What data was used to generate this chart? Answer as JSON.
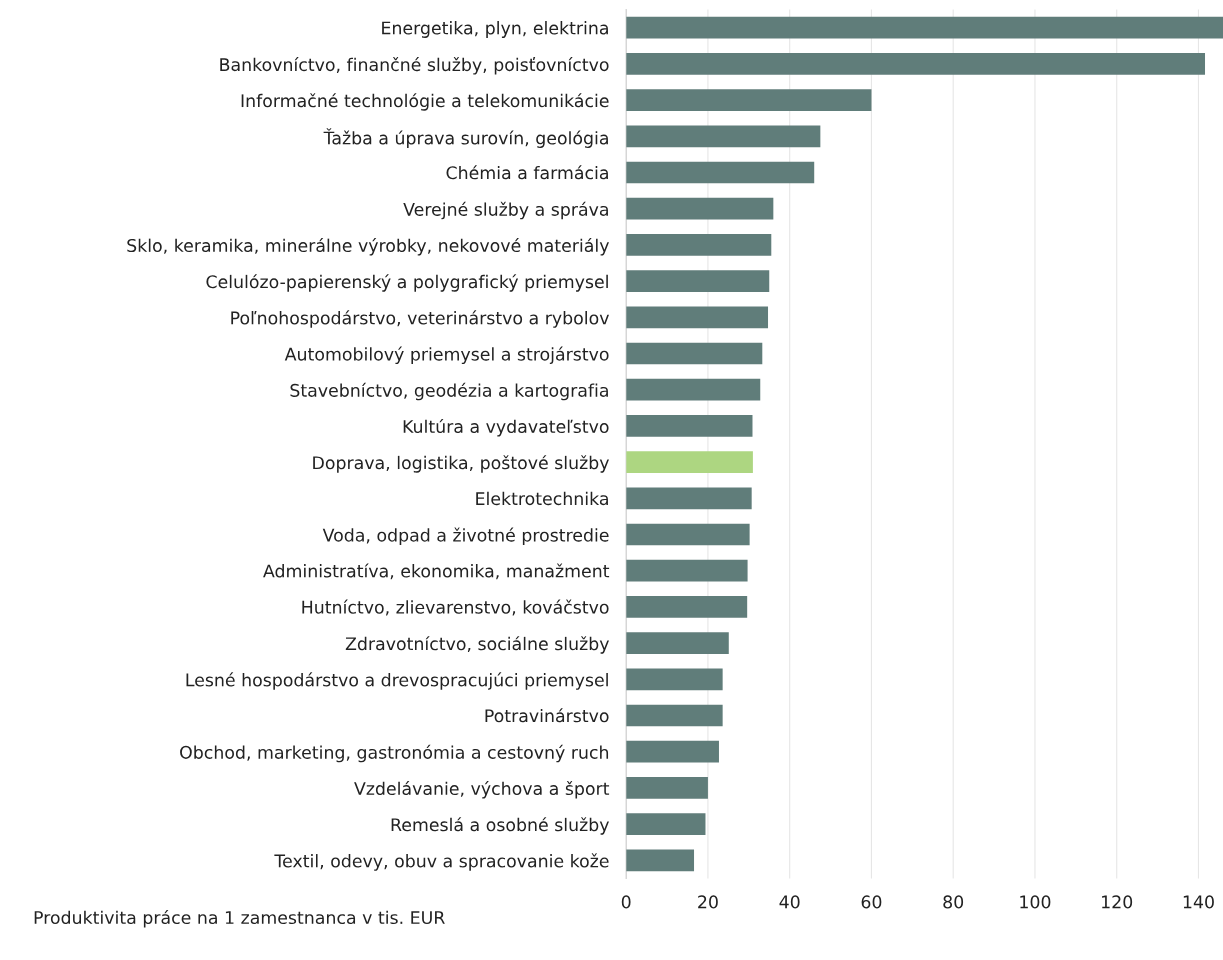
{
  "chart_data": {
    "type": "bar",
    "orientation": "horizontal",
    "xlabel": "Produktivita práce na 1 zamestnanca v tis. EUR",
    "categories": [
      "Energetika, plyn, elektrina",
      "Bankovníctvo, finančné služby, poisťovníctvo",
      "Informačné technológie a telekomunikácie",
      "Ťažba a úprava surovín, geológia",
      "Chémia a farmácia",
      "Verejné služby a správa",
      "Sklo, keramika, minerálne výrobky, nekovové materiály",
      "Celulózo-papierenský a polygrafický priemysel",
      "Poľnohospodárstvo, veterinárstvo a rybolov",
      "Automobilový priemysel a strojárstvo",
      "Stavebníctvo, geodézia a kartografia",
      "Kultúra a vydavateľstvo",
      "Doprava, logistika, poštové služby",
      "Elektrotechnika",
      "Voda, odpad a životné prostredie",
      "Administratíva, ekonomika, manažment",
      "Hutníctvo, zlievarenstvo, kováčstvo",
      "Zdravotníctvo, sociálne služby",
      "Lesné hospodárstvo a drevospracujúci priemysel",
      "Potravinárstvo",
      "Obchod, marketing, gastronómia a cestovný ruch",
      "Vzdelávanie, výchova a šport",
      "Remeslá a osobné služby",
      "Textil, odevy, obuv a spracovanie kože"
    ],
    "values": [
      146,
      141.6,
      60,
      47.5,
      46,
      36,
      35.5,
      35,
      34.7,
      33.3,
      32.8,
      30.9,
      31,
      30.7,
      30.2,
      29.7,
      29.6,
      25.1,
      23.6,
      23.6,
      22.7,
      20,
      19.4,
      16.6
    ],
    "colors": [
      "#607d7a",
      "#607d7a",
      "#607d7a",
      "#607d7a",
      "#607d7a",
      "#607d7a",
      "#607d7a",
      "#607d7a",
      "#607d7a",
      "#607d7a",
      "#607d7a",
      "#607d7a",
      "#add681",
      "#607d7a",
      "#607d7a",
      "#607d7a",
      "#607d7a",
      "#607d7a",
      "#607d7a",
      "#607d7a",
      "#607d7a",
      "#607d7a",
      "#607d7a",
      "#607d7a"
    ],
    "xlim": [
      0,
      146
    ],
    "xticks": [
      0,
      20,
      40,
      60,
      80,
      100,
      120,
      140
    ],
    "grid": "x"
  }
}
